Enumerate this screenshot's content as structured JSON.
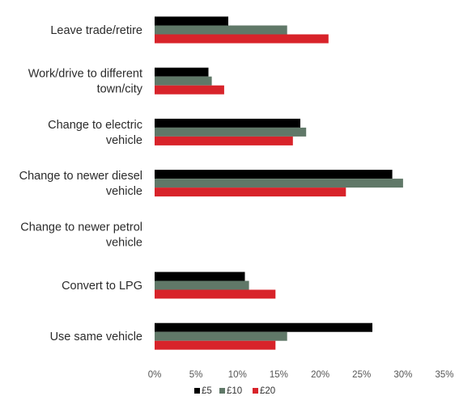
{
  "chart_data": {
    "type": "bar",
    "orientation": "horizontal",
    "categories": [
      [
        "Leave trade/retire"
      ],
      [
        "Work/drive to different",
        "town/city"
      ],
      [
        "Change to electric",
        "vehicle"
      ],
      [
        "Change to newer diesel",
        "vehicle"
      ],
      [
        "Change to newer petrol",
        "vehicle"
      ],
      [
        "Convert to LPG"
      ],
      [
        "Use same vehicle"
      ]
    ],
    "series": [
      {
        "name": "£5",
        "color": "#000000",
        "values": [
          8.9,
          6.5,
          17.6,
          28.7,
          0,
          10.9,
          26.3
        ]
      },
      {
        "name": "£10",
        "color": "#607868",
        "values": [
          16.0,
          6.9,
          18.3,
          30.0,
          0,
          11.4,
          16.0
        ]
      },
      {
        "name": "£20",
        "color": "#d8232a",
        "values": [
          21.0,
          8.4,
          16.7,
          23.1,
          0,
          14.6,
          14.6
        ]
      }
    ],
    "xlim": [
      0,
      35
    ],
    "xticks": [
      "0%",
      "5%",
      "10%",
      "15%",
      "20%",
      "25%",
      "30%",
      "35%"
    ],
    "legend_position": "bottom",
    "grid": false
  }
}
